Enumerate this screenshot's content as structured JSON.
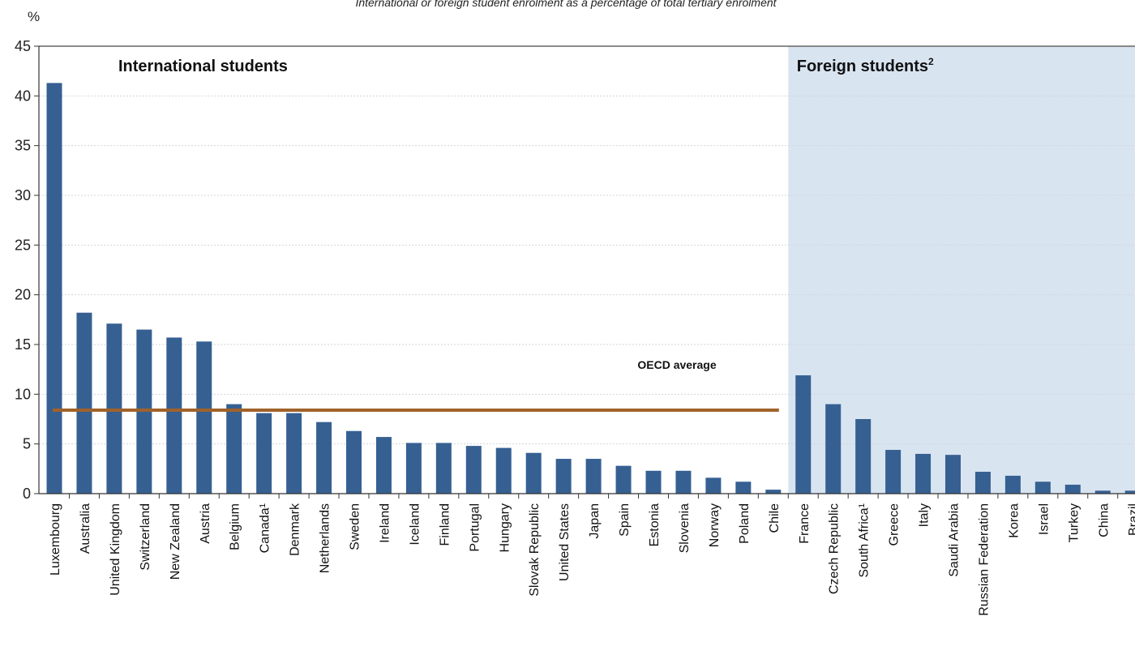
{
  "chart_data": {
    "type": "bar",
    "subtitle": "International or foreign student enrolment as a percentage of total tertiary enrolment",
    "unit": "%",
    "ylim": [
      0,
      45
    ],
    "yticks": [
      0,
      5,
      10,
      15,
      20,
      25,
      30,
      35,
      40,
      45
    ],
    "grid": true,
    "bar_color": "#366092",
    "shade_color": "#d9e4f1",
    "average_color": "#a0622a",
    "groups": [
      {
        "label": "International students",
        "superscript": "",
        "shaded": false,
        "start_index": 0,
        "end_index": 24
      },
      {
        "label": "Foreign students",
        "superscript": "2",
        "shaded": true,
        "start_index": 25,
        "end_index": 36
      }
    ],
    "average": {
      "label": "OECD average",
      "value": 8.4,
      "start_index": 0,
      "end_index": 24
    },
    "categories": [
      "Luxembourg",
      "Australia",
      "United Kingdom",
      "Switzerland",
      "New Zealand",
      "Austria",
      "Belgium",
      "Canada¹",
      "Denmark",
      "Netherlands",
      "Sweden",
      "Ireland",
      "Iceland",
      "Finland",
      "Portugal",
      "Hungary",
      "Slovak Republic",
      "United States",
      "Japan",
      "Spain",
      "Estonia",
      "Slovenia",
      "Norway",
      "Poland",
      "Chile",
      "France",
      "Czech Republic",
      "South Africa¹",
      "Greece",
      "Italy",
      "Saudi Arabia",
      "Russian Federation",
      "Korea",
      "Israel",
      "Turkey",
      "China",
      "Brazil"
    ],
    "values": [
      41.3,
      18.2,
      17.1,
      16.5,
      15.7,
      15.3,
      9.0,
      8.1,
      8.1,
      7.2,
      6.3,
      5.7,
      5.1,
      5.1,
      4.8,
      4.6,
      4.1,
      3.5,
      3.5,
      2.8,
      2.3,
      2.3,
      1.6,
      1.2,
      0.4,
      11.9,
      9.0,
      7.5,
      4.4,
      4.0,
      3.9,
      2.2,
      1.8,
      1.2,
      0.9,
      0.3,
      0.3
    ]
  }
}
